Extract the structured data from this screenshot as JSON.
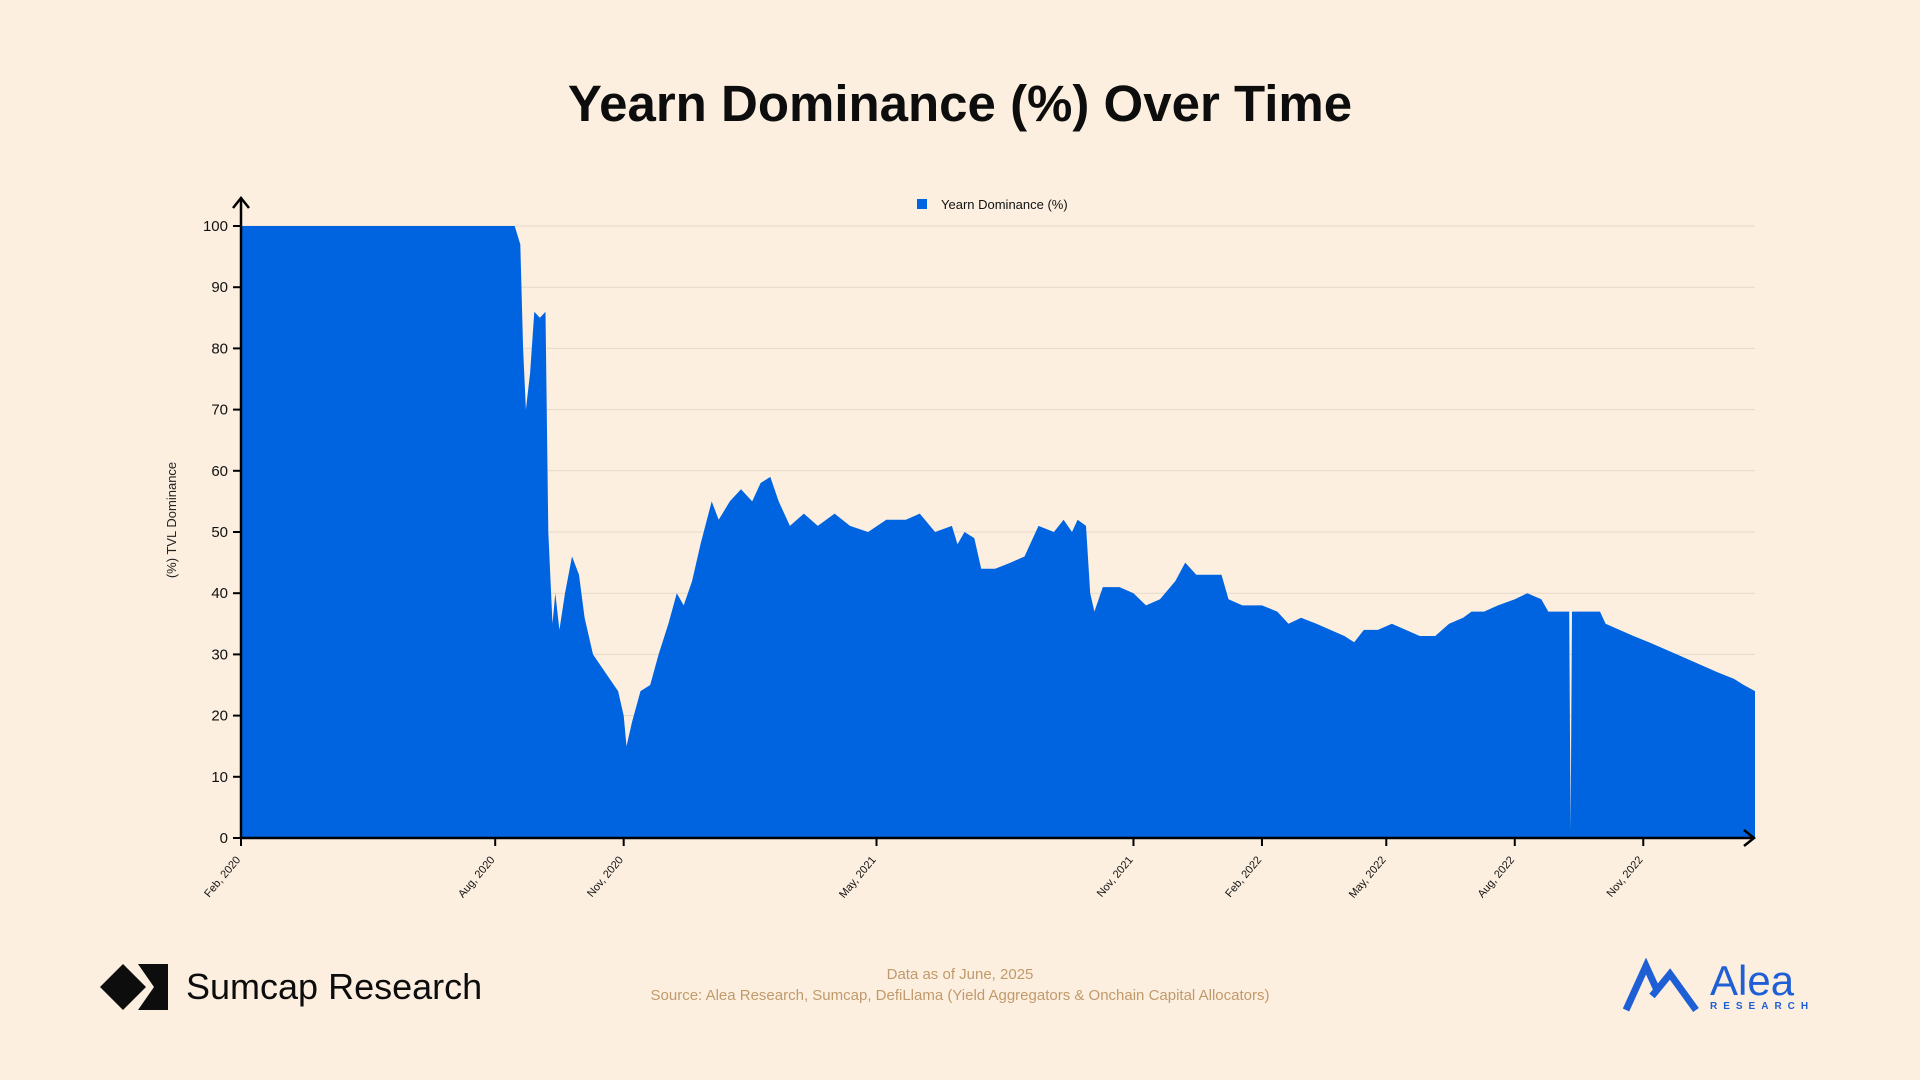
{
  "brand_left": {
    "text": "Sumcap Research",
    "icon": "sumcap-diamond-logo-icon"
  },
  "brand_right": {
    "name": "Alea",
    "subtitle": "RESEARCH",
    "icon": "alea-logo-icon",
    "color": "#1f5fd6"
  },
  "footer": {
    "date_note": "Data as of June, 2025",
    "source_note": "Source: Alea Research, Sumcap, DefiLlama (Yield Aggregators & Onchain Capital Allocators)"
  },
  "chart_data": {
    "type": "area",
    "title": "Yearn Dominance (%) Over Time",
    "ylabel": "(%) TVL Dominance",
    "xlabel": "",
    "ylim": [
      0,
      100
    ],
    "yticks": [
      0,
      10,
      20,
      30,
      40,
      50,
      60,
      70,
      80,
      90,
      100
    ],
    "xticks": [
      {
        "label": "Feb, 2020",
        "date": "2020-02-01"
      },
      {
        "label": "Aug, 2020",
        "date": "2020-08-01"
      },
      {
        "label": "Nov, 2020",
        "date": "2020-11-01"
      },
      {
        "label": "May, 2021",
        "date": "2021-05-01"
      },
      {
        "label": "Nov, 2021",
        "date": "2021-11-01"
      },
      {
        "label": "Feb, 2022",
        "date": "2022-02-01"
      },
      {
        "label": "May, 2022",
        "date": "2022-05-01"
      },
      {
        "label": "Aug, 2022",
        "date": "2022-08-01"
      },
      {
        "label": "Nov, 2022",
        "date": "2022-11-01"
      }
    ],
    "xrange": [
      "2020-02-01",
      "2023-01-20"
    ],
    "grid": true,
    "legend_position": "top-center",
    "color": "#0064e1",
    "series": [
      {
        "name": "Yearn Dominance (%)",
        "points": [
          [
            "2020-02-01",
            100
          ],
          [
            "2020-08-15",
            100
          ],
          [
            "2020-08-19",
            97
          ],
          [
            "2020-08-21",
            80
          ],
          [
            "2020-08-23",
            70
          ],
          [
            "2020-08-26",
            76
          ],
          [
            "2020-08-29",
            86
          ],
          [
            "2020-09-02",
            85
          ],
          [
            "2020-09-06",
            86
          ],
          [
            "2020-09-08",
            50
          ],
          [
            "2020-09-11",
            35
          ],
          [
            "2020-09-13",
            40
          ],
          [
            "2020-09-16",
            34
          ],
          [
            "2020-09-20",
            40
          ],
          [
            "2020-09-25",
            46
          ],
          [
            "2020-09-30",
            43
          ],
          [
            "2020-10-04",
            36
          ],
          [
            "2020-10-10",
            30
          ],
          [
            "2020-10-16",
            28
          ],
          [
            "2020-10-22",
            26
          ],
          [
            "2020-10-28",
            24
          ],
          [
            "2020-11-01",
            20
          ],
          [
            "2020-11-03",
            15
          ],
          [
            "2020-11-07",
            19
          ],
          [
            "2020-11-13",
            24
          ],
          [
            "2020-11-20",
            25
          ],
          [
            "2020-11-26",
            30
          ],
          [
            "2020-12-03",
            35
          ],
          [
            "2020-12-09",
            40
          ],
          [
            "2020-12-14",
            38
          ],
          [
            "2020-12-20",
            42
          ],
          [
            "2020-12-26",
            48
          ],
          [
            "2021-01-03",
            55
          ],
          [
            "2021-01-08",
            52
          ],
          [
            "2021-01-16",
            55
          ],
          [
            "2021-01-24",
            57
          ],
          [
            "2021-02-01",
            55
          ],
          [
            "2021-02-07",
            58
          ],
          [
            "2021-02-14",
            59
          ],
          [
            "2021-02-20",
            55
          ],
          [
            "2021-02-28",
            51
          ],
          [
            "2021-03-10",
            53
          ],
          [
            "2021-03-20",
            51
          ],
          [
            "2021-04-01",
            53
          ],
          [
            "2021-04-12",
            51
          ],
          [
            "2021-04-25",
            50
          ],
          [
            "2021-05-08",
            52
          ],
          [
            "2021-05-22",
            52
          ],
          [
            "2021-06-01",
            53
          ],
          [
            "2021-06-12",
            50
          ],
          [
            "2021-06-24",
            51
          ],
          [
            "2021-06-28",
            48
          ],
          [
            "2021-07-03",
            50
          ],
          [
            "2021-07-10",
            49
          ],
          [
            "2021-07-15",
            44
          ],
          [
            "2021-07-25",
            44
          ],
          [
            "2021-08-05",
            45
          ],
          [
            "2021-08-15",
            46
          ],
          [
            "2021-08-25",
            51
          ],
          [
            "2021-09-05",
            50
          ],
          [
            "2021-09-12",
            52
          ],
          [
            "2021-09-18",
            50
          ],
          [
            "2021-09-22",
            52
          ],
          [
            "2021-09-28",
            51
          ],
          [
            "2021-10-01",
            40
          ],
          [
            "2021-10-04",
            37
          ],
          [
            "2021-10-10",
            41
          ],
          [
            "2021-10-22",
            41
          ],
          [
            "2021-11-01",
            40
          ],
          [
            "2021-11-10",
            38
          ],
          [
            "2021-11-20",
            39
          ],
          [
            "2021-12-01",
            42
          ],
          [
            "2021-12-08",
            45
          ],
          [
            "2021-12-16",
            43
          ],
          [
            "2021-12-26",
            43
          ],
          [
            "2022-01-03",
            43
          ],
          [
            "2022-01-08",
            39
          ],
          [
            "2022-01-18",
            38
          ],
          [
            "2022-02-01",
            38
          ],
          [
            "2022-02-12",
            37
          ],
          [
            "2022-02-20",
            35
          ],
          [
            "2022-03-01",
            36
          ],
          [
            "2022-03-12",
            35
          ],
          [
            "2022-03-22",
            34
          ],
          [
            "2022-04-01",
            33
          ],
          [
            "2022-04-08",
            32
          ],
          [
            "2022-04-15",
            34
          ],
          [
            "2022-04-25",
            34
          ],
          [
            "2022-05-05",
            35
          ],
          [
            "2022-05-15",
            34
          ],
          [
            "2022-05-25",
            33
          ],
          [
            "2022-06-05",
            33
          ],
          [
            "2022-06-15",
            35
          ],
          [
            "2022-06-25",
            36
          ],
          [
            "2022-07-01",
            37
          ],
          [
            "2022-07-10",
            37
          ],
          [
            "2022-07-20",
            38
          ],
          [
            "2022-08-01",
            39
          ],
          [
            "2022-08-10",
            40
          ],
          [
            "2022-08-20",
            39
          ],
          [
            "2022-08-25",
            37
          ],
          [
            "2022-09-05",
            37
          ],
          [
            "2022-09-09",
            37
          ],
          [
            "2022-09-10",
            1
          ],
          [
            "2022-09-11",
            37
          ],
          [
            "2022-09-20",
            37
          ],
          [
            "2022-10-01",
            37
          ],
          [
            "2022-10-05",
            35
          ],
          [
            "2022-10-15",
            34
          ],
          [
            "2022-10-25",
            33
          ],
          [
            "2022-11-05",
            32
          ],
          [
            "2022-11-15",
            31
          ],
          [
            "2022-11-25",
            30
          ],
          [
            "2022-12-05",
            29
          ],
          [
            "2022-12-15",
            28
          ],
          [
            "2022-12-25",
            27
          ],
          [
            "2023-01-05",
            26
          ],
          [
            "2023-01-12",
            25
          ],
          [
            "2023-01-20",
            24
          ]
        ]
      }
    ]
  }
}
